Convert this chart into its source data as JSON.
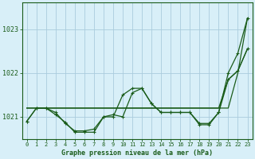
{
  "background_color": "#d8eff8",
  "grid_color": "#aaccdd",
  "line_color": "#1a5c1a",
  "title": "Graphe pression niveau de la mer (hPa)",
  "xlabel_ticks": [
    "0",
    "1",
    "2",
    "3",
    "4",
    "5",
    "6",
    "7",
    "8",
    "9",
    "10",
    "11",
    "12",
    "13",
    "14",
    "15",
    "16",
    "17",
    "18",
    "19",
    "20",
    "21",
    "22",
    "23"
  ],
  "yticks": [
    1021,
    1022,
    1023
  ],
  "ylim": [
    1020.5,
    1023.6
  ],
  "xlim": [
    -0.5,
    23.5
  ],
  "series_with_markers": [
    [
      1020.9,
      1021.2,
      1021.2,
      1021.1,
      1020.85,
      1020.68,
      1020.68,
      1020.72,
      1021.0,
      1021.05,
      1021.0,
      1021.55,
      1021.65,
      1021.3,
      1021.1,
      1021.1,
      1021.1,
      1021.1,
      1020.82,
      1020.82,
      1021.1,
      1022.0,
      1022.45,
      1023.25
    ],
    [
      1020.9,
      1021.2,
      1021.2,
      1021.05,
      1020.88,
      1020.65,
      1020.65,
      1020.65,
      1021.0,
      1021.0,
      1021.5,
      1021.65,
      1021.65,
      1021.3,
      1021.1,
      1021.1,
      1021.1,
      1021.1,
      1020.85,
      1020.85,
      1021.1,
      1021.85,
      1022.05,
      1022.55
    ]
  ],
  "series_no_markers": [
    [
      1021.2,
      1021.2,
      1021.2,
      1021.2,
      1021.2,
      1021.2,
      1021.2,
      1021.2,
      1021.2,
      1021.2,
      1021.2,
      1021.2,
      1021.2,
      1021.2,
      1021.2,
      1021.2,
      1021.2,
      1021.2,
      1021.2,
      1021.2,
      1021.2,
      1021.2,
      1022.0,
      1023.25
    ],
    [
      1021.2,
      1021.2,
      1021.2,
      1021.2,
      1021.2,
      1021.2,
      1021.2,
      1021.2,
      1021.2,
      1021.2,
      1021.2,
      1021.2,
      1021.2,
      1021.2,
      1021.2,
      1021.2,
      1021.2,
      1021.2,
      1021.2,
      1021.2,
      1021.2,
      1021.85,
      1022.05,
      1022.55
    ]
  ],
  "marker": "P",
  "markersize": 2.5,
  "linewidth": 0.9
}
